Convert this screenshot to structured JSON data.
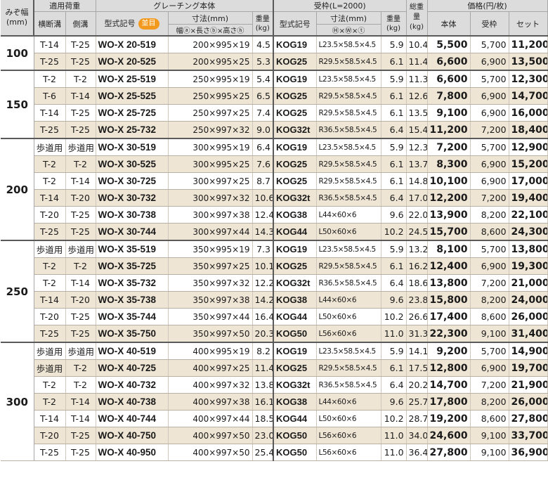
{
  "header": {
    "width_label": "みぞ幅(mm)",
    "load_label": "適用荷重",
    "load_sub": [
      "横断溝",
      "側溝"
    ],
    "grating_label": "グレーチング本体",
    "grating_model": "型式記号",
    "badge": "並目",
    "grating_dim": "寸法(mm)",
    "grating_dim_sub": "幅ⓐ×長さⓑ×高さⓗ",
    "weight": "重量(kg)",
    "frame_label": "受枠(L=2000)",
    "frame_model": "型式記号",
    "frame_dim": "寸法(mm)",
    "frame_dim_sub": "Ⓗ×Ⓦ×ⓣ",
    "frame_weight": "重量(kg)",
    "total_weight": "総重量(kg)",
    "price_label": "価格(円/枚)",
    "price_sub": [
      "本体",
      "受枠",
      "セット"
    ]
  },
  "groups": [
    {
      "width": "100",
      "rows": [
        {
          "load1": "T-14",
          "load2": "T-25",
          "model": "WO-X 20-519",
          "dim": "200×995×19",
          "weight": "4.5",
          "fmodel": "KOG19",
          "fdim": "L23.5×58.5×4.5",
          "fweight": "5.9",
          "total": "10.4",
          "p_body": "5,500",
          "p_frame": "5,700",
          "p_set": "11,200"
        },
        {
          "load1": "T-25",
          "load2": "T-25",
          "model": "WO-X 20-525",
          "dim": "200×995×25",
          "weight": "5.3",
          "fmodel": "KOG25",
          "fdim": "R29.5×58.5×4.5",
          "fweight": "6.1",
          "total": "11.4",
          "p_body": "6,600",
          "p_frame": "6,900",
          "p_set": "13,500"
        }
      ]
    },
    {
      "width": "150",
      "rows": [
        {
          "load1": "T-2",
          "load2": "T-2",
          "model": "WO-X 25-519",
          "dim": "250×995×19",
          "weight": "5.4",
          "fmodel": "KOG19",
          "fdim": "L23.5×58.5×4.5",
          "fweight": "5.9",
          "total": "11.3",
          "p_body": "6,600",
          "p_frame": "5,700",
          "p_set": "12,300"
        },
        {
          "load1": "T-6",
          "load2": "T-14",
          "model": "WO-X 25-525",
          "dim": "250×995×25",
          "weight": "6.5",
          "fmodel": "KOG25",
          "fdim": "R29.5×58.5×4.5",
          "fweight": "6.1",
          "total": "12.6",
          "p_body": "7,800",
          "p_frame": "6,900",
          "p_set": "14,700"
        },
        {
          "load1": "T-14",
          "load2": "T-25",
          "model": "WO-X 25-725",
          "dim": "250×997×25",
          "weight": "7.4",
          "fmodel": "KOG25",
          "fdim": "R29.5×58.5×4.5",
          "fweight": "6.1",
          "total": "13.5",
          "p_body": "9,100",
          "p_frame": "6,900",
          "p_set": "16,000"
        },
        {
          "load1": "T-25",
          "load2": "T-25",
          "model": "WO-X 25-732",
          "dim": "250×997×32",
          "weight": "9.0",
          "fmodel": "KOG32t",
          "fdim": "R36.5×58.5×4.5",
          "fweight": "6.4",
          "total": "15.4",
          "p_body": "11,200",
          "p_frame": "7,200",
          "p_set": "18,400"
        }
      ]
    },
    {
      "width": "200",
      "rows": [
        {
          "load1": "歩道用",
          "load2": "歩道用",
          "model": "WO-X 30-519",
          "dim": "300×995×19",
          "weight": "6.4",
          "fmodel": "KOG19",
          "fdim": "L23.5×58.5×4.5",
          "fweight": "5.9",
          "total": "12.3",
          "p_body": "7,200",
          "p_frame": "5,700",
          "p_set": "12,900"
        },
        {
          "load1": "T-2",
          "load2": "T-2",
          "model": "WO-X 30-525",
          "dim": "300×995×25",
          "weight": "7.6",
          "fmodel": "KOG25",
          "fdim": "R29.5×58.5×4.5",
          "fweight": "6.1",
          "total": "13.7",
          "p_body": "8,300",
          "p_frame": "6,900",
          "p_set": "15,200"
        },
        {
          "load1": "T-2",
          "load2": "T-14",
          "model": "WO-X 30-725",
          "dim": "300×997×25",
          "weight": "8.7",
          "fmodel": "KOG25",
          "fdim": "R29.5×58.5×4.5",
          "fweight": "6.1",
          "total": "14.8",
          "p_body": "10,100",
          "p_frame": "6,900",
          "p_set": "17,000"
        },
        {
          "load1": "T-14",
          "load2": "T-20",
          "model": "WO-X 30-732",
          "dim": "300×997×32",
          "weight": "10.6",
          "fmodel": "KOG32t",
          "fdim": "R36.5×58.5×4.5",
          "fweight": "6.4",
          "total": "17.0",
          "p_body": "12,200",
          "p_frame": "7,200",
          "p_set": "19,400"
        },
        {
          "load1": "T-20",
          "load2": "T-25",
          "model": "WO-X 30-738",
          "dim": "300×997×38",
          "weight": "12.4",
          "fmodel": "KOG38",
          "fdim": "L44×60×6",
          "fweight": "9.6",
          "total": "22.0",
          "p_body": "13,900",
          "p_frame": "8,200",
          "p_set": "22,100"
        },
        {
          "load1": "T-25",
          "load2": "T-25",
          "model": "WO-X 30-744",
          "dim": "300×997×44",
          "weight": "14.3",
          "fmodel": "KOG44",
          "fdim": "L50×60×6",
          "fweight": "10.2",
          "total": "24.5",
          "p_body": "15,700",
          "p_frame": "8,600",
          "p_set": "24,300"
        }
      ]
    },
    {
      "width": "250",
      "rows": [
        {
          "load1": "歩道用",
          "load2": "歩道用",
          "model": "WO-X 35-519",
          "dim": "350×995×19",
          "weight": "7.3",
          "fmodel": "KOG19",
          "fdim": "L23.5×58.5×4.5",
          "fweight": "5.9",
          "total": "13.2",
          "p_body": "8,100",
          "p_frame": "5,700",
          "p_set": "13,800"
        },
        {
          "load1": "T-2",
          "load2": "T-2",
          "model": "WO-X 35-725",
          "dim": "350×997×25",
          "weight": "10.1",
          "fmodel": "KOG25",
          "fdim": "R29.5×58.5×4.5",
          "fweight": "6.1",
          "total": "16.2",
          "p_body": "12,400",
          "p_frame": "6,900",
          "p_set": "19,300"
        },
        {
          "load1": "T-2",
          "load2": "T-14",
          "model": "WO-X 35-732",
          "dim": "350×997×32",
          "weight": "12.2",
          "fmodel": "KOG32t",
          "fdim": "R36.5×58.5×4.5",
          "fweight": "6.4",
          "total": "18.6",
          "p_body": "13,800",
          "p_frame": "7,200",
          "p_set": "21,000"
        },
        {
          "load1": "T-14",
          "load2": "T-20",
          "model": "WO-X 35-738",
          "dim": "350×997×38",
          "weight": "14.2",
          "fmodel": "KOG38",
          "fdim": "L44×60×6",
          "fweight": "9.6",
          "total": "23.8",
          "p_body": "15,800",
          "p_frame": "8,200",
          "p_set": "24,000"
        },
        {
          "load1": "T-20",
          "load2": "T-25",
          "model": "WO-X 35-744",
          "dim": "350×997×44",
          "weight": "16.4",
          "fmodel": "KOG44",
          "fdim": "L50×60×6",
          "fweight": "10.2",
          "total": "26.6",
          "p_body": "17,400",
          "p_frame": "8,600",
          "p_set": "26,000"
        },
        {
          "load1": "T-25",
          "load2": "T-25",
          "model": "WO-X 35-750",
          "dim": "350×997×50",
          "weight": "20.3",
          "fmodel": "KOG50",
          "fdim": "L56×60×6",
          "fweight": "11.0",
          "total": "31.3",
          "p_body": "22,300",
          "p_frame": "9,100",
          "p_set": "31,400"
        }
      ]
    },
    {
      "width": "300",
      "rows": [
        {
          "load1": "歩道用",
          "load2": "歩道用",
          "model": "WO-X 40-519",
          "dim": "400×995×19",
          "weight": "8.2",
          "fmodel": "KOG19",
          "fdim": "L23.5×58.5×4.5",
          "fweight": "5.9",
          "total": "14.1",
          "p_body": "9,200",
          "p_frame": "5,700",
          "p_set": "14,900"
        },
        {
          "load1": "歩道用",
          "load2": "T-2",
          "model": "WO-X 40-725",
          "dim": "400×997×25",
          "weight": "11.4",
          "fmodel": "KOG25",
          "fdim": "R29.5×58.5×4.5",
          "fweight": "6.1",
          "total": "17.5",
          "p_body": "12,800",
          "p_frame": "6,900",
          "p_set": "19,700"
        },
        {
          "load1": "T-2",
          "load2": "T-2",
          "model": "WO-X 40-732",
          "dim": "400×997×32",
          "weight": "13.8",
          "fmodel": "KOG32t",
          "fdim": "R36.5×58.5×4.5",
          "fweight": "6.4",
          "total": "20.2",
          "p_body": "14,700",
          "p_frame": "7,200",
          "p_set": "21,900"
        },
        {
          "load1": "T-2",
          "load2": "T-14",
          "model": "WO-X 40-738",
          "dim": "400×997×38",
          "weight": "16.1",
          "fmodel": "KOG38",
          "fdim": "L44×60×6",
          "fweight": "9.6",
          "total": "25.7",
          "p_body": "17,800",
          "p_frame": "8,200",
          "p_set": "26,000"
        },
        {
          "load1": "T-14",
          "load2": "T-14",
          "model": "WO-X 40-744",
          "dim": "400×997×44",
          "weight": "18.5",
          "fmodel": "KOG44",
          "fdim": "L50×60×6",
          "fweight": "10.2",
          "total": "28.7",
          "p_body": "19,200",
          "p_frame": "8,600",
          "p_set": "27,800"
        },
        {
          "load1": "T-20",
          "load2": "T-25",
          "model": "WO-X 40-750",
          "dim": "400×997×50",
          "weight": "23.0",
          "fmodel": "KOG50",
          "fdim": "L56×60×6",
          "fweight": "11.0",
          "total": "34.0",
          "p_body": "24,600",
          "p_frame": "9,100",
          "p_set": "33,700"
        },
        {
          "load1": "T-25",
          "load2": "T-25",
          "model": "WO-X 40-950",
          "dim": "400×997×50",
          "weight": "25.4",
          "fmodel": "KOG50",
          "fdim": "L56×60×6",
          "fweight": "11.0",
          "total": "36.4",
          "p_body": "27,800",
          "p_frame": "9,100",
          "p_set": "36,900"
        }
      ]
    }
  ]
}
